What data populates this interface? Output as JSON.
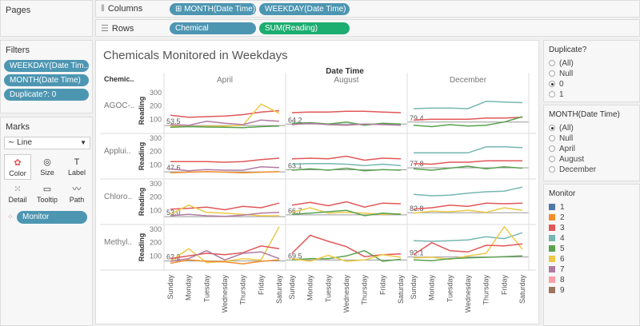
{
  "pages": {
    "title": "Pages"
  },
  "shelves": {
    "columns_label": "Columns",
    "rows_label": "Rows",
    "columns_pills": [
      "MONTH(Date Time)",
      "WEEKDAY(Date Time)"
    ],
    "rows_pills": [
      "Chemical",
      "SUM(Reading)"
    ]
  },
  "filters": {
    "title": "Filters",
    "pills": [
      "WEEKDAY(Date Tim..",
      "MONTH(Date Time)",
      "Duplicate?: 0"
    ]
  },
  "marks": {
    "title": "Marks",
    "mark_type": "Line",
    "buttons": [
      "Color",
      "Size",
      "Label",
      "Detail",
      "Tooltip",
      "Path"
    ],
    "color_pill": "Monitor"
  },
  "duplicate_filter": {
    "title": "Duplicate?",
    "options": [
      "(All)",
      "Null",
      "0",
      "1"
    ],
    "selected": "0"
  },
  "month_filter": {
    "title": "MONTH(Date Time)",
    "options": [
      "(All)",
      "Null",
      "April",
      "August",
      "December"
    ],
    "selected": "(All)"
  },
  "legend": {
    "title": "Monitor",
    "items": [
      {
        "label": "1",
        "color": "#4e79a7"
      },
      {
        "label": "2",
        "color": "#f28e2b"
      },
      {
        "label": "3",
        "color": "#e15759"
      },
      {
        "label": "4",
        "color": "#76b7b2"
      },
      {
        "label": "5",
        "color": "#59a14f"
      },
      {
        "label": "6",
        "color": "#edc948"
      },
      {
        "label": "7",
        "color": "#b07aa1"
      },
      {
        "label": "8",
        "color": "#ff9da7"
      },
      {
        "label": "9",
        "color": "#9c755f"
      }
    ]
  },
  "chart_data": {
    "type": "line",
    "title": "Chemicals Monitored in Weekdays",
    "column_header": "Date Time",
    "row_header": "Chemic..",
    "ylabel": "Reading",
    "months": [
      "April",
      "August",
      "December"
    ],
    "chemicals": [
      "AGOC-..",
      "Applui..",
      "Chloro..",
      "Methyl.."
    ],
    "weekdays": [
      "Sunday",
      "Monday",
      "Tuesday",
      "Wednesday",
      "Thursday",
      "Friday",
      "Saturday"
    ],
    "yticks": [
      100,
      200,
      300
    ],
    "ylim": [
      0,
      330
    ],
    "reference_labels": [
      [
        "53.5",
        "64.2",
        "79.4"
      ],
      [
        "47.6",
        "63.1",
        "77.8"
      ],
      [
        "53.0",
        "66.7",
        "82.8"
      ],
      [
        "62.2",
        "69.5",
        "92.1"
      ]
    ],
    "reference_values": [
      [
        53.5,
        64.2,
        79.4
      ],
      [
        47.6,
        63.1,
        77.8
      ],
      [
        53.0,
        66.7,
        82.8
      ],
      [
        62.2,
        69.5,
        92.1
      ]
    ],
    "series": [
      {
        "chem": 0,
        "month": 0,
        "monitor": "3",
        "values": [
          130,
          115,
          120,
          125,
          135,
          155,
          165
        ]
      },
      {
        "chem": 0,
        "month": 0,
        "monitor": "6",
        "values": [
          50,
          45,
          48,
          50,
          55,
          215,
          145
        ]
      },
      {
        "chem": 0,
        "month": 0,
        "monitor": "7",
        "values": [
          60,
          55,
          85,
          70,
          60,
          95,
          85
        ]
      },
      {
        "chem": 0,
        "month": 0,
        "monitor": "5",
        "values": [
          40,
          45,
          42,
          40,
          38,
          45,
          50
        ]
      },
      {
        "chem": 0,
        "month": 1,
        "monitor": "3",
        "values": [
          150,
          155,
          155,
          160,
          160,
          155,
          150
        ]
      },
      {
        "chem": 0,
        "month": 1,
        "monitor": "5",
        "values": [
          70,
          75,
          65,
          80,
          55,
          70,
          65
        ]
      },
      {
        "chem": 0,
        "month": 1,
        "monitor": "7",
        "values": [
          60,
          70,
          60,
          55,
          65,
          60,
          55
        ]
      },
      {
        "chem": 0,
        "month": 2,
        "monitor": "4",
        "values": [
          180,
          185,
          185,
          180,
          235,
          230,
          225
        ]
      },
      {
        "chem": 0,
        "month": 2,
        "monitor": "3",
        "values": [
          95,
          100,
          100,
          100,
          110,
          110,
          115
        ]
      },
      {
        "chem": 0,
        "month": 2,
        "monitor": "5",
        "values": [
          55,
          45,
          60,
          50,
          55,
          80,
          120
        ]
      },
      {
        "chem": 1,
        "month": 0,
        "monitor": "3",
        "values": [
          125,
          125,
          125,
          120,
          125,
          140,
          150
        ]
      },
      {
        "chem": 1,
        "month": 0,
        "monitor": "7",
        "values": [
          70,
          55,
          65,
          60,
          60,
          85,
          80
        ]
      },
      {
        "chem": 1,
        "month": 0,
        "monitor": "2",
        "values": [
          40,
          45,
          50,
          45,
          40,
          45,
          50
        ]
      },
      {
        "chem": 1,
        "month": 1,
        "monitor": "3",
        "values": [
          145,
          150,
          145,
          165,
          135,
          150,
          145
        ]
      },
      {
        "chem": 1,
        "month": 1,
        "monitor": "4",
        "values": [
          105,
          110,
          110,
          105,
          95,
          105,
          95
        ]
      },
      {
        "chem": 1,
        "month": 1,
        "monitor": "5",
        "values": [
          60,
          70,
          60,
          75,
          55,
          65,
          60
        ]
      },
      {
        "chem": 1,
        "month": 2,
        "monitor": "4",
        "values": [
          190,
          190,
          190,
          190,
          235,
          235,
          230
        ]
      },
      {
        "chem": 1,
        "month": 2,
        "monitor": "3",
        "values": [
          110,
          105,
          120,
          120,
          130,
          130,
          130
        ]
      },
      {
        "chem": 1,
        "month": 2,
        "monitor": "5",
        "values": [
          70,
          60,
          75,
          90,
          70,
          85,
          75
        ]
      },
      {
        "chem": 2,
        "month": 0,
        "monitor": "3",
        "values": [
          110,
          115,
          125,
          105,
          130,
          120,
          155
        ]
      },
      {
        "chem": 2,
        "month": 0,
        "monitor": "6",
        "values": [
          70,
          140,
          85,
          80,
          70,
          60,
          60
        ]
      },
      {
        "chem": 2,
        "month": 0,
        "monitor": "7",
        "values": [
          60,
          70,
          60,
          55,
          65,
          80,
          85
        ]
      },
      {
        "chem": 2,
        "month": 1,
        "monitor": "3",
        "values": [
          140,
          160,
          135,
          165,
          125,
          155,
          150
        ]
      },
      {
        "chem": 2,
        "month": 1,
        "monitor": "6",
        "values": [
          85,
          120,
          80,
          85,
          80,
          70,
          75
        ]
      },
      {
        "chem": 2,
        "month": 1,
        "monitor": "5",
        "values": [
          70,
          80,
          90,
          100,
          60,
          80,
          70
        ]
      },
      {
        "chem": 2,
        "month": 2,
        "monitor": "4",
        "values": [
          220,
          210,
          215,
          230,
          240,
          245,
          275
        ]
      },
      {
        "chem": 2,
        "month": 2,
        "monitor": "3",
        "values": [
          110,
          120,
          140,
          130,
          155,
          150,
          155
        ]
      },
      {
        "chem": 2,
        "month": 2,
        "monitor": "6",
        "values": [
          80,
          95,
          90,
          100,
          85,
          120,
          100
        ]
      },
      {
        "chem": 3,
        "month": 0,
        "monitor": "6",
        "values": [
          60,
          155,
          50,
          60,
          80,
          70,
          320
        ]
      },
      {
        "chem": 3,
        "month": 0,
        "monitor": "3",
        "values": [
          80,
          100,
          120,
          110,
          125,
          175,
          155
        ]
      },
      {
        "chem": 3,
        "month": 0,
        "monitor": "7",
        "values": [
          60,
          80,
          140,
          70,
          120,
          130,
          80
        ]
      },
      {
        "chem": 3,
        "month": 0,
        "monitor": "2",
        "values": [
          45,
          70,
          60,
          55,
          40,
          60,
          70
        ]
      },
      {
        "chem": 3,
        "month": 1,
        "monitor": "3",
        "values": [
          120,
          255,
          210,
          170,
          95,
          110,
          115
        ]
      },
      {
        "chem": 3,
        "month": 1,
        "monitor": "5",
        "values": [
          70,
          80,
          80,
          100,
          140,
          60,
          75
        ]
      },
      {
        "chem": 3,
        "month": 1,
        "monitor": "6",
        "values": [
          80,
          60,
          105,
          60,
          70,
          110,
          90
        ]
      },
      {
        "chem": 3,
        "month": 2,
        "monitor": "4",
        "values": [
          215,
          210,
          215,
          220,
          245,
          230,
          275
        ]
      },
      {
        "chem": 3,
        "month": 2,
        "monitor": "6",
        "values": [
          85,
          90,
          75,
          100,
          120,
          320,
          150
        ]
      },
      {
        "chem": 3,
        "month": 2,
        "monitor": "3",
        "values": [
          110,
          200,
          140,
          130,
          180,
          175,
          190
        ]
      },
      {
        "chem": 3,
        "month": 2,
        "monitor": "5",
        "values": [
          70,
          65,
          80,
          85,
          90,
          95,
          100
        ]
      }
    ]
  }
}
